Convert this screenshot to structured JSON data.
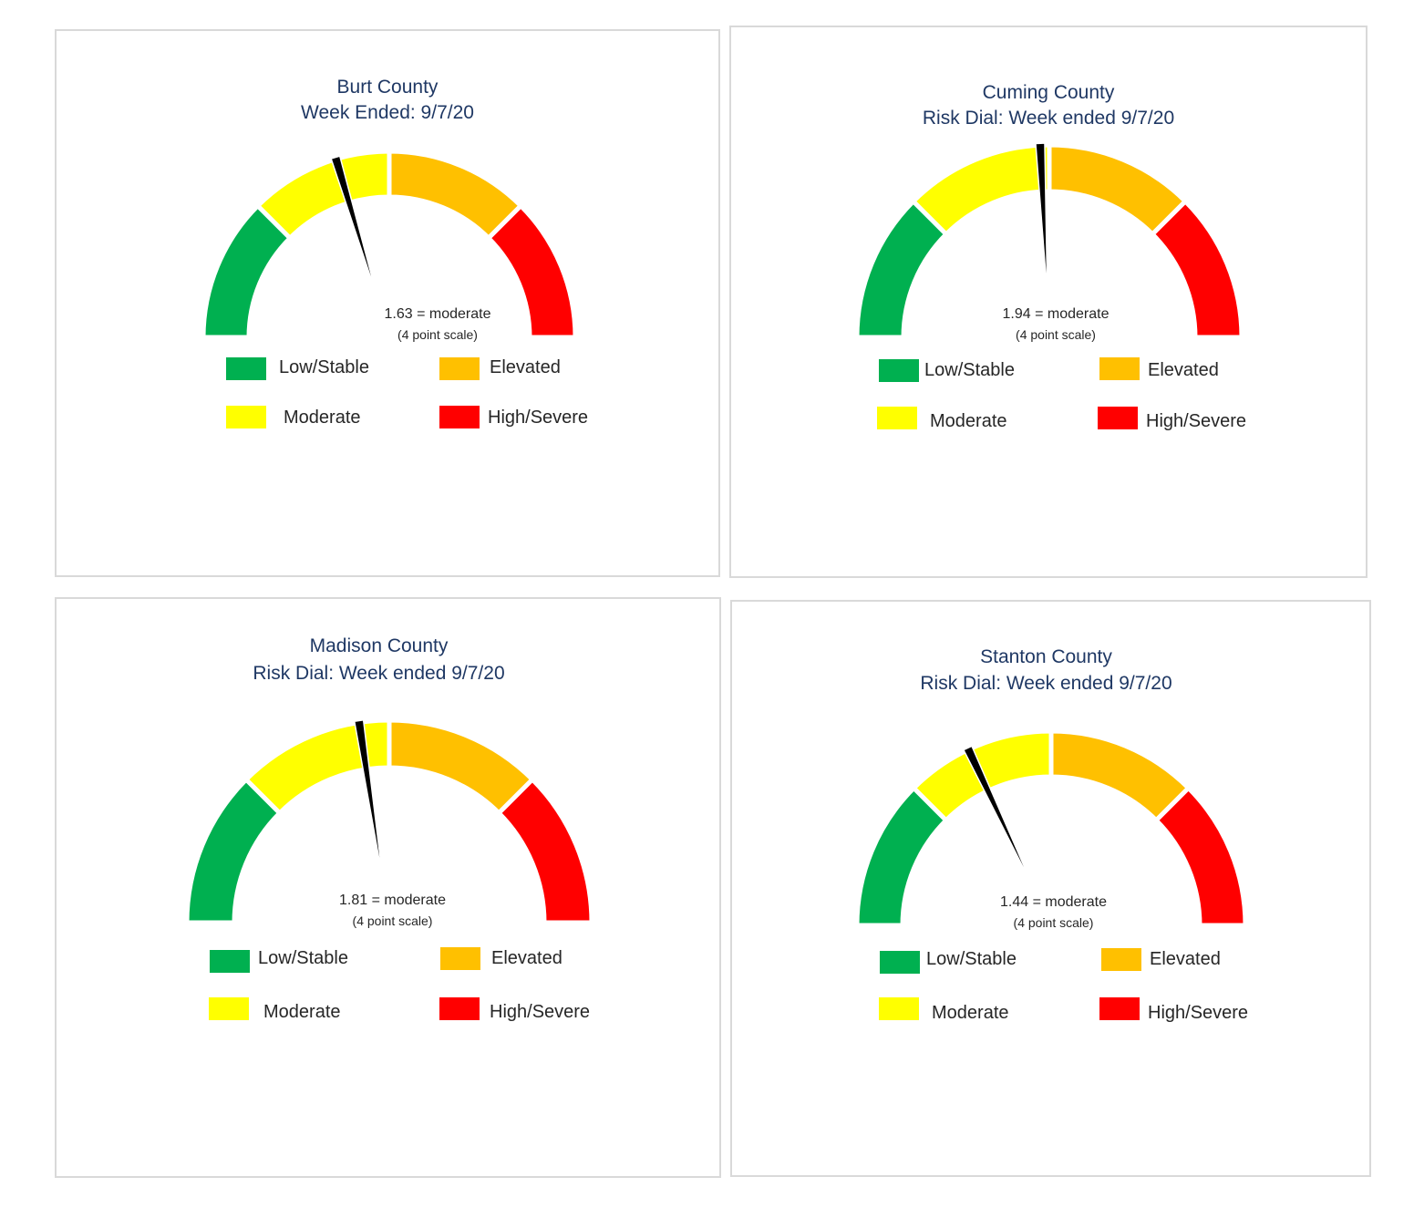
{
  "colors": {
    "low": "#00b050",
    "moderate": "#ffff00",
    "elevated": "#ffc000",
    "high": "#ff0000",
    "needle": "#000000",
    "title": "#1f3864"
  },
  "legend": {
    "low": "Low/Stable",
    "moderate": "Moderate",
    "elevated": "Elevated",
    "high": "High/Severe"
  },
  "panels": [
    {
      "title": "Burt County",
      "subtitle": "Week Ended: 9/7/20",
      "value_text": "1.63 = moderate",
      "scale_text": "(4 point scale)"
    },
    {
      "title": "Cuming County",
      "subtitle": "Risk Dial: Week ended 9/7/20",
      "value_text": "1.94 = moderate",
      "scale_text": "(4 point scale)"
    },
    {
      "title": "Madison County",
      "subtitle": "Risk Dial: Week ended 9/7/20",
      "value_text": "1.81 = moderate",
      "scale_text": "(4 point scale)"
    },
    {
      "title": "Stanton County",
      "subtitle": "Risk Dial: Week ended 9/7/20",
      "value_text": "1.44 = moderate",
      "scale_text": "(4 point scale)"
    }
  ],
  "chart_data": [
    {
      "type": "gauge",
      "title": "Burt County",
      "subtitle": "Week Ended: 9/7/20",
      "value": 1.63,
      "scale_min": 0,
      "scale_max": 4,
      "bands": [
        {
          "name": "Low/Stable",
          "from": 0,
          "to": 1
        },
        {
          "name": "Moderate",
          "from": 1,
          "to": 2
        },
        {
          "name": "Elevated",
          "from": 2,
          "to": 3
        },
        {
          "name": "High/Severe",
          "from": 3,
          "to": 4
        }
      ]
    },
    {
      "type": "gauge",
      "title": "Cuming County",
      "subtitle": "Risk Dial: Week ended 9/7/20",
      "value": 1.94,
      "scale_min": 0,
      "scale_max": 4,
      "bands": [
        {
          "name": "Low/Stable",
          "from": 0,
          "to": 1
        },
        {
          "name": "Moderate",
          "from": 1,
          "to": 2
        },
        {
          "name": "Elevated",
          "from": 2,
          "to": 3
        },
        {
          "name": "High/Severe",
          "from": 3,
          "to": 4
        }
      ]
    },
    {
      "type": "gauge",
      "title": "Madison County",
      "subtitle": "Risk Dial: Week ended 9/7/20",
      "value": 1.81,
      "scale_min": 0,
      "scale_max": 4,
      "bands": [
        {
          "name": "Low/Stable",
          "from": 0,
          "to": 1
        },
        {
          "name": "Moderate",
          "from": 1,
          "to": 2
        },
        {
          "name": "Elevated",
          "from": 2,
          "to": 3
        },
        {
          "name": "High/Severe",
          "from": 3,
          "to": 4
        }
      ]
    },
    {
      "type": "gauge",
      "title": "Stanton County",
      "subtitle": "Risk Dial: Week ended 9/7/20",
      "value": 1.44,
      "scale_min": 0,
      "scale_max": 4,
      "bands": [
        {
          "name": "Low/Stable",
          "from": 0,
          "to": 1
        },
        {
          "name": "Moderate",
          "from": 1,
          "to": 2
        },
        {
          "name": "Elevated",
          "from": 2,
          "to": 3
        },
        {
          "name": "High/Severe",
          "from": 3,
          "to": 4
        }
      ]
    }
  ]
}
